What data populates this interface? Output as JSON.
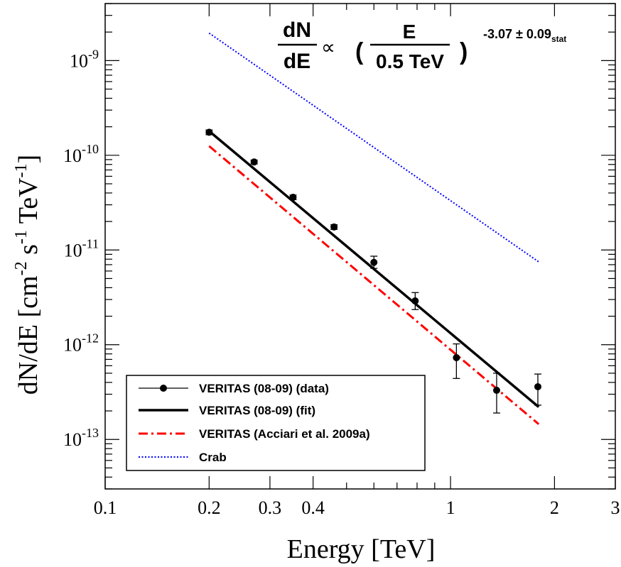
{
  "chart_data": {
    "type": "scatter",
    "xlabel": "Energy [TeV]",
    "ylabel": {
      "base": "dN/dE [cm",
      "sup1": "-2",
      "mid1": " s",
      "sup2": "-1",
      "mid2": " TeV",
      "sup3": "-1",
      "end": "]"
    },
    "x_scale": "log",
    "y_scale": "log",
    "xlim": [
      0.1,
      3
    ],
    "ylim": [
      3e-14,
      4e-09
    ],
    "grid": false,
    "legend_position": "bottom-left",
    "x_ticks": [
      {
        "value": 0.1,
        "label": "0.1"
      },
      {
        "value": 0.2,
        "label": "0.2"
      },
      {
        "value": 0.3,
        "label": "0.3"
      },
      {
        "value": 0.4,
        "label": "0.4"
      },
      {
        "value": 1,
        "label": "1"
      },
      {
        "value": 2,
        "label": "2"
      },
      {
        "value": 3,
        "label": "3"
      }
    ],
    "y_ticks": [
      {
        "value": 1e-13,
        "mantissa": "10",
        "exp": "-13"
      },
      {
        "value": 1e-12,
        "mantissa": "10",
        "exp": "-12"
      },
      {
        "value": 1e-11,
        "mantissa": "10",
        "exp": "-11"
      },
      {
        "value": 1e-10,
        "mantissa": "10",
        "exp": "-10"
      },
      {
        "value": 1e-09,
        "mantissa": "10",
        "exp": "-9"
      }
    ],
    "annotation": {
      "num": "dN",
      "den": "dE",
      "prop": "∝",
      "lparen": "(",
      "inner_num": "E",
      "inner_den": "0.5 TeV",
      "rparen": ")",
      "exponent": "-3.07 ± 0.09",
      "exponent_sub": "stat"
    },
    "series": [
      {
        "name": "VERITAS (08-09) (data)",
        "kind": "points",
        "color": "#000000",
        "points": [
          {
            "x": 0.2,
            "y": 1.75e-10,
            "err_lo": 1e-11,
            "err_hi": 1e-11
          },
          {
            "x": 0.27,
            "y": 8.5e-11,
            "err_lo": 4e-12,
            "err_hi": 4e-12
          },
          {
            "x": 0.35,
            "y": 3.6e-11,
            "err_lo": 2e-12,
            "err_hi": 2e-12
          },
          {
            "x": 0.46,
            "y": 1.75e-11,
            "err_lo": 1e-12,
            "err_hi": 1e-12
          },
          {
            "x": 0.6,
            "y": 7.4e-12,
            "err_lo": 1e-12,
            "err_hi": 1.2e-12
          },
          {
            "x": 0.79,
            "y": 2.9e-12,
            "err_lo": 5.5e-13,
            "err_hi": 6.5e-13
          },
          {
            "x": 1.04,
            "y": 7.3e-13,
            "err_lo": 2.9e-13,
            "err_hi": 2.9e-13
          },
          {
            "x": 1.36,
            "y": 3.3e-13,
            "err_lo": 1.4e-13,
            "err_hi": 1.7e-13
          },
          {
            "x": 1.79,
            "y": 3.6e-13,
            "err_lo": 1.3e-13,
            "err_hi": 1.3e-13
          }
        ]
      },
      {
        "name": "VERITAS (08-09) (fit)",
        "kind": "line",
        "style": "solid",
        "color": "#000000",
        "x": [
          0.2,
          1.8
        ],
        "y": [
          1.8e-10,
          2.2e-13
        ]
      },
      {
        "name": "VERITAS (Acciari et al. 2009a)",
        "kind": "line",
        "style": "dashdot",
        "color": "#ff0000",
        "x": [
          0.2,
          1.8
        ],
        "y": [
          1.25e-10,
          1.45e-13
        ]
      },
      {
        "name": "Crab",
        "kind": "line",
        "style": "dotted",
        "color": "#0000ff",
        "x": [
          0.2,
          1.8
        ],
        "y": [
          1.95e-09,
          7.5e-12
        ]
      }
    ]
  }
}
